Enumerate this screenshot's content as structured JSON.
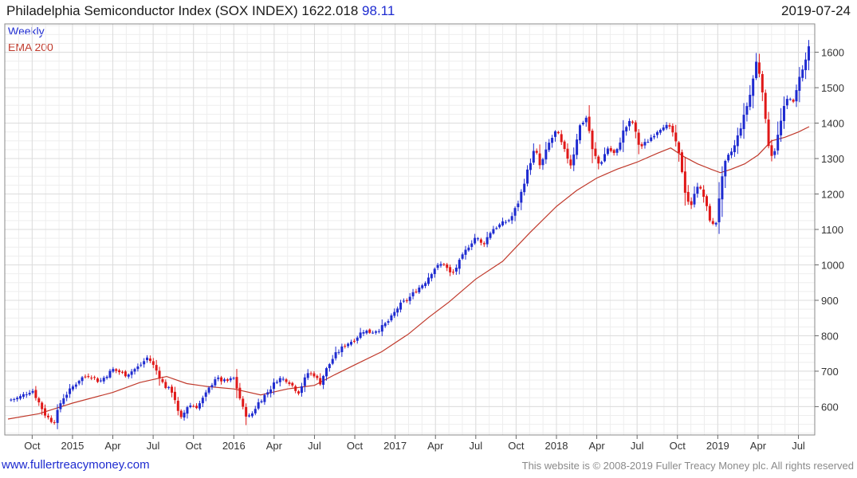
{
  "header": {
    "title": "Philadelphia Semiconductor Index (SOX INDEX) 1622.018",
    "change": "98.11",
    "date": "2019-07-24"
  },
  "legend": {
    "weekly": "Weekly",
    "ema": "EMA 200"
  },
  "footer": {
    "left": "www.fullertreacymoney.com",
    "right": "This website is © 2008-2019 Fuller Treacy Money plc. All rights reserved"
  },
  "colors": {
    "up": "#1e2bd0",
    "down": "#e01818",
    "ema": "#c0392b",
    "grid": "#dcdcdc"
  },
  "chart_data": {
    "type": "line",
    "title": "Philadelphia Semiconductor Index (SOX INDEX)",
    "frequency": "Weekly",
    "ylim": [
      520,
      1680
    ],
    "y_ticks": [
      600,
      700,
      800,
      900,
      1000,
      1100,
      1200,
      1300,
      1400,
      1500,
      1600
    ],
    "x_tick_labels": [
      "Oct",
      "2015",
      "Apr",
      "Jul",
      "Oct",
      "2016",
      "Apr",
      "Jul",
      "Oct",
      "2017",
      "Apr",
      "Jul",
      "Oct",
      "2018",
      "Apr",
      "Jul",
      "Oct",
      "2019",
      "Apr",
      "Jul"
    ],
    "x_tick_months": [
      9,
      12,
      15,
      18,
      21,
      24,
      27,
      30,
      33,
      36,
      39,
      42,
      45,
      48,
      51,
      54,
      57,
      60,
      63,
      66
    ],
    "start_month": 7.2,
    "end_month": 66.8,
    "grid": true,
    "series": [
      {
        "name": "SOX INDEX Weekly close",
        "style": "candlestick",
        "points": [
          [
            7.2,
            618
          ],
          [
            8.0,
            625
          ],
          [
            9.0,
            648
          ],
          [
            10.0,
            575
          ],
          [
            10.6,
            555
          ],
          [
            11.2,
            620
          ],
          [
            12.0,
            655
          ],
          [
            12.6,
            680
          ],
          [
            13.3,
            690
          ],
          [
            14.0,
            670
          ],
          [
            15.0,
            705
          ],
          [
            16.0,
            690
          ],
          [
            17.0,
            715
          ],
          [
            17.6,
            740
          ],
          [
            18.2,
            705
          ],
          [
            18.8,
            660
          ],
          [
            19.5,
            640
          ],
          [
            20.0,
            560
          ],
          [
            20.6,
            605
          ],
          [
            21.3,
            600
          ],
          [
            22.0,
            640
          ],
          [
            22.6,
            680
          ],
          [
            23.4,
            670
          ],
          [
            24.0,
            680
          ],
          [
            24.4,
            630
          ],
          [
            24.8,
            580
          ],
          [
            25.2,
            570
          ],
          [
            25.8,
            610
          ],
          [
            26.6,
            645
          ],
          [
            27.3,
            680
          ],
          [
            28.0,
            675
          ],
          [
            28.8,
            640
          ],
          [
            29.5,
            695
          ],
          [
            30.0,
            690
          ],
          [
            30.4,
            665
          ],
          [
            30.8,
            700
          ],
          [
            31.5,
            745
          ],
          [
            32.3,
            775
          ],
          [
            33.0,
            790
          ],
          [
            33.6,
            815
          ],
          [
            34.2,
            810
          ],
          [
            34.9,
            820
          ],
          [
            35.6,
            845
          ],
          [
            36.3,
            885
          ],
          [
            37.0,
            905
          ],
          [
            37.6,
            930
          ],
          [
            38.2,
            950
          ],
          [
            38.9,
            990
          ],
          [
            39.6,
            1005
          ],
          [
            40.2,
            970
          ],
          [
            40.8,
            1010
          ],
          [
            41.4,
            1050
          ],
          [
            42.0,
            1080
          ],
          [
            42.5,
            1055
          ],
          [
            43.2,
            1100
          ],
          [
            43.9,
            1115
          ],
          [
            44.6,
            1130
          ],
          [
            45.2,
            1180
          ],
          [
            45.8,
            1260
          ],
          [
            46.4,
            1330
          ],
          [
            46.8,
            1275
          ],
          [
            47.4,
            1340
          ],
          [
            48.0,
            1380
          ],
          [
            48.5,
            1330
          ],
          [
            49.1,
            1280
          ],
          [
            49.7,
            1390
          ],
          [
            50.3,
            1420
          ],
          [
            50.6,
            1330
          ],
          [
            51.2,
            1280
          ],
          [
            51.8,
            1330
          ],
          [
            52.4,
            1310
          ],
          [
            53.0,
            1380
          ],
          [
            53.6,
            1410
          ],
          [
            54.2,
            1330
          ],
          [
            54.8,
            1350
          ],
          [
            55.4,
            1375
          ],
          [
            56.0,
            1395
          ],
          [
            56.6,
            1380
          ],
          [
            57.2,
            1300
          ],
          [
            57.6,
            1200
          ],
          [
            58.0,
            1160
          ],
          [
            58.4,
            1230
          ],
          [
            58.9,
            1200
          ],
          [
            59.4,
            1130
          ],
          [
            59.8,
            1100
          ],
          [
            60.2,
            1220
          ],
          [
            60.6,
            1295
          ],
          [
            61.2,
            1330
          ],
          [
            61.8,
            1400
          ],
          [
            62.4,
            1480
          ],
          [
            62.9,
            1580
          ],
          [
            63.3,
            1500
          ],
          [
            63.7,
            1350
          ],
          [
            64.1,
            1300
          ],
          [
            64.5,
            1370
          ],
          [
            64.9,
            1440
          ],
          [
            65.3,
            1480
          ],
          [
            65.7,
            1450
          ],
          [
            66.0,
            1530
          ],
          [
            66.4,
            1555
          ],
          [
            66.8,
            1622
          ]
        ]
      },
      {
        "name": "EMA 200",
        "style": "line",
        "points": [
          [
            7.2,
            565
          ],
          [
            9.5,
            580
          ],
          [
            12.0,
            610
          ],
          [
            15.0,
            640
          ],
          [
            17.0,
            668
          ],
          [
            19.0,
            685
          ],
          [
            20.5,
            665
          ],
          [
            22.0,
            657
          ],
          [
            24.0,
            650
          ],
          [
            26.0,
            633
          ],
          [
            28.0,
            650
          ],
          [
            30.0,
            660
          ],
          [
            31.5,
            690
          ],
          [
            33.0,
            718
          ],
          [
            35.0,
            755
          ],
          [
            37.0,
            805
          ],
          [
            38.5,
            852
          ],
          [
            40.0,
            895
          ],
          [
            42.0,
            960
          ],
          [
            44.0,
            1010
          ],
          [
            46.0,
            1090
          ],
          [
            48.0,
            1165
          ],
          [
            49.5,
            1210
          ],
          [
            51.0,
            1245
          ],
          [
            52.5,
            1270
          ],
          [
            54.0,
            1290
          ],
          [
            55.5,
            1315
          ],
          [
            56.5,
            1330
          ],
          [
            57.5,
            1305
          ],
          [
            58.5,
            1285
          ],
          [
            59.5,
            1270
          ],
          [
            60.2,
            1260
          ],
          [
            61.0,
            1270
          ],
          [
            62.0,
            1285
          ],
          [
            63.0,
            1310
          ],
          [
            64.0,
            1350
          ],
          [
            65.0,
            1360
          ],
          [
            66.0,
            1375
          ],
          [
            66.8,
            1390
          ]
        ]
      }
    ]
  }
}
